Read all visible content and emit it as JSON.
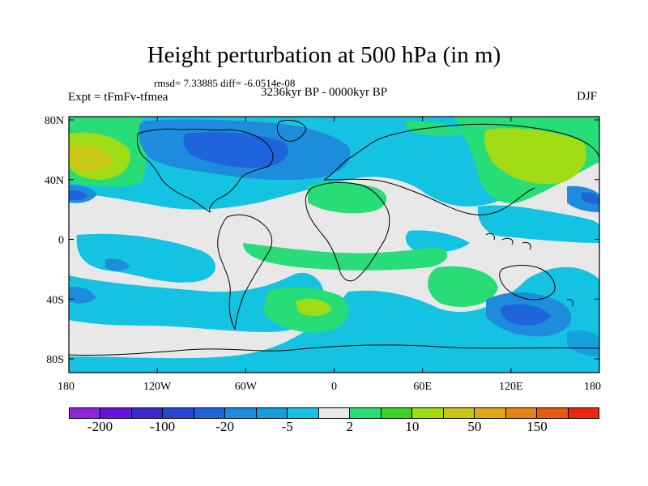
{
  "title": "Height perturbation at 500 hPa (in m)",
  "stats": "rmsd= 7.33885 diff= -6.0514e-08",
  "expt": "Expt = tFmFv-tfmea",
  "period": "3236kyr BP - 0000kyr BP",
  "season": "DJF",
  "map": {
    "lat_ticks": [
      "80N",
      "40N",
      "0",
      "40S",
      "80S"
    ],
    "lon_ticks": [
      "180",
      "120W",
      "60W",
      "0",
      "60E",
      "120E",
      "180"
    ]
  },
  "colorbar": {
    "colors": [
      "#8c28dc",
      "#6414dc",
      "#3c28c8",
      "#2846d2",
      "#1e64dc",
      "#1e8cdc",
      "#14a0dc",
      "#14c3e1",
      "#e8e8e8",
      "#28dc78",
      "#3cd228",
      "#a0dc14",
      "#c8c814",
      "#dcaa14",
      "#e68214",
      "#e65a14",
      "#e62814"
    ],
    "labels": [
      "-200",
      "-100",
      "-20",
      "-5",
      "2",
      "10",
      "50",
      "150"
    ],
    "label_boundaries": [
      1,
      3,
      5,
      7,
      9,
      11,
      13,
      15
    ]
  }
}
